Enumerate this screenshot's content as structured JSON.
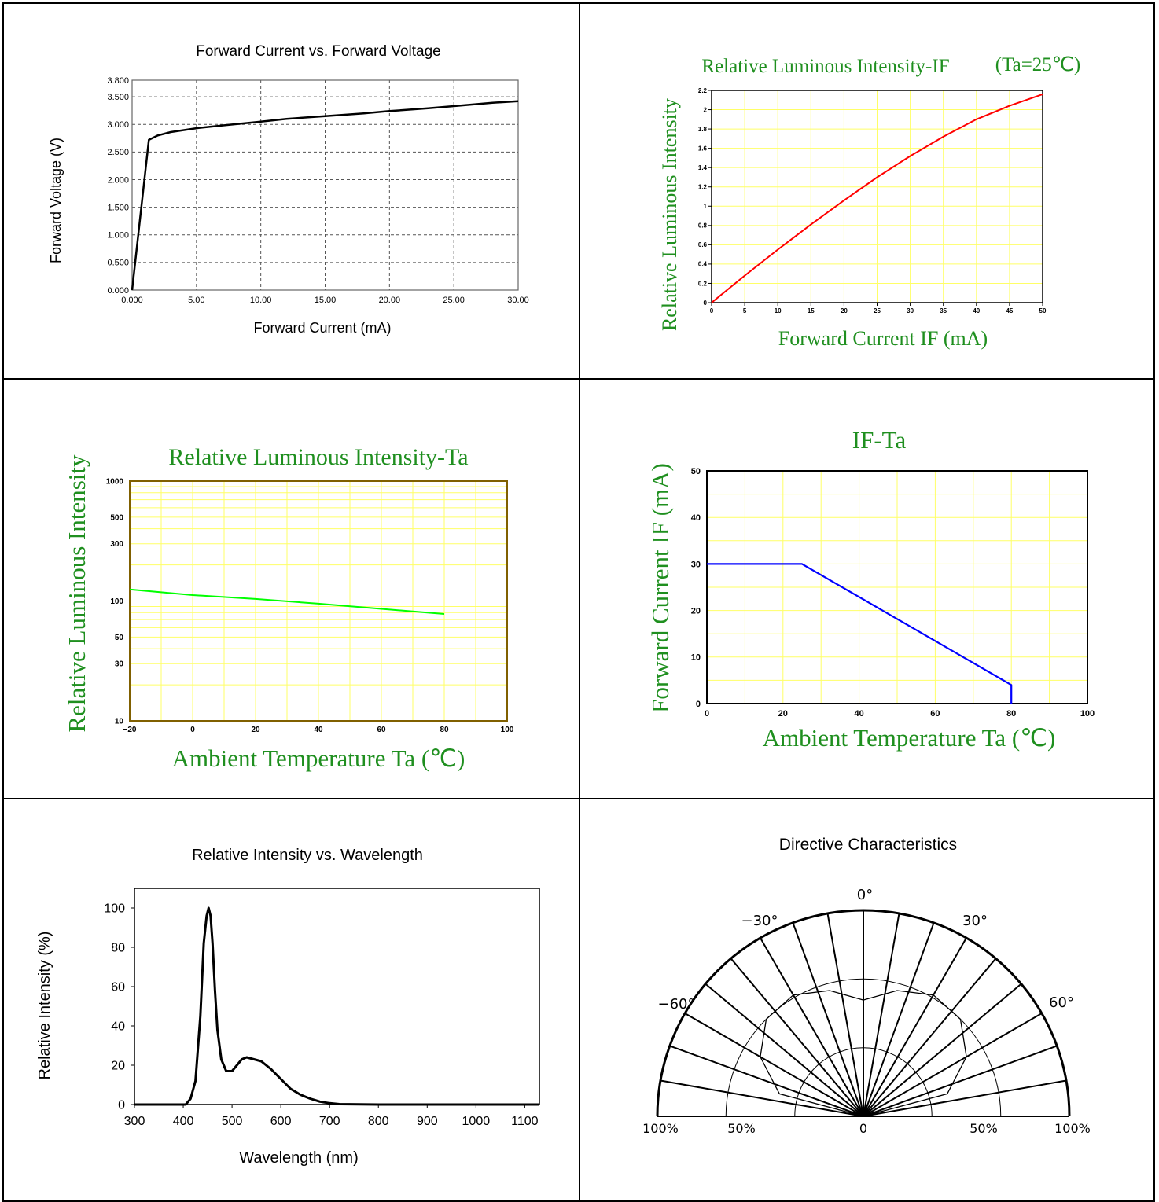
{
  "colors": {
    "grid_yellow": "#ffff66",
    "title_green": "#1f8f1f",
    "curve_red": "#ff0000",
    "curve_green": "#00ff00",
    "curve_blue": "#0000ff",
    "axis_black": "#000000",
    "frame_olive": "#806000"
  },
  "chart_data": [
    {
      "id": "fv",
      "type": "line",
      "title": "Forward Current vs. Forward Voltage",
      "xlabel": "Forward Current (mA)",
      "ylabel": "Forward Voltage (V)",
      "xlim": [
        0,
        30
      ],
      "ylim": [
        0,
        3.8
      ],
      "x_ticks": [
        "0.000",
        "5.00",
        "10.00",
        "15.00",
        "20.00",
        "25.00",
        "30.00"
      ],
      "y_ticks": [
        "0.000",
        "0.500",
        "1.000",
        "1.500",
        "2.000",
        "2.500",
        "3.000",
        "3.500",
        "3.800"
      ],
      "grid": "dashed",
      "series": [
        {
          "x": [
            0,
            1.3,
            2,
            3,
            5,
            7,
            10,
            12,
            15,
            18,
            20,
            23,
            25,
            28,
            30
          ],
          "y": [
            0,
            2.72,
            2.8,
            2.86,
            2.93,
            2.98,
            3.05,
            3.1,
            3.15,
            3.2,
            3.24,
            3.29,
            3.33,
            3.39,
            3.42
          ]
        }
      ]
    },
    {
      "id": "iv",
      "type": "line",
      "title": "Relative Luminous Intensity-IF",
      "title_note": "(Ta=25℃)",
      "xlabel": "Forward Current IF (mA)",
      "ylabel": "Relative Luminous Intensity",
      "xlim": [
        0,
        50
      ],
      "ylim": [
        0,
        2.2
      ],
      "x_ticks": [
        "0",
        "5",
        "10",
        "15",
        "20",
        "25",
        "30",
        "35",
        "40",
        "45",
        "50"
      ],
      "y_ticks": [
        "0",
        "0.2",
        "0.4",
        "0.6",
        "0.8",
        "1",
        "1.2",
        "1.4",
        "1.6",
        "1.8",
        "2",
        "2.2"
      ],
      "grid": "on",
      "series": [
        {
          "x": [
            0,
            5,
            10,
            15,
            20,
            25,
            30,
            35,
            40,
            45,
            50
          ],
          "y": [
            0,
            0.28,
            0.55,
            0.81,
            1.06,
            1.3,
            1.52,
            1.72,
            1.9,
            2.04,
            2.16
          ]
        }
      ]
    },
    {
      "id": "ta",
      "type": "line",
      "title": "Relative Luminous Intensity-Ta",
      "xlabel": "Ambient Temperature Ta (℃)",
      "ylabel": "Relative Luminous Intensity",
      "xlim": [
        -20,
        100
      ],
      "ylim": [
        10,
        1000
      ],
      "y_scale": "log",
      "x_ticks": [
        "−20",
        "0",
        "20",
        "40",
        "60",
        "80",
        "100"
      ],
      "y_ticks": [
        "10",
        "30",
        "50",
        "100",
        "300",
        "500",
        "1000"
      ],
      "grid": "on",
      "series": [
        {
          "x": [
            -20,
            0,
            20,
            40,
            60,
            80
          ],
          "y": [
            125,
            112,
            104,
            95,
            86,
            78
          ]
        }
      ]
    },
    {
      "id": "ifta",
      "type": "line",
      "title": "IF-Ta",
      "xlabel": "Ambient Temperature Ta (℃)",
      "ylabel": "Forward Current IF (mA)",
      "xlim": [
        0,
        100
      ],
      "ylim": [
        0,
        50
      ],
      "x_ticks": [
        "0",
        "20",
        "40",
        "60",
        "80",
        "100"
      ],
      "y_ticks": [
        "0",
        "10",
        "20",
        "30",
        "40",
        "50"
      ],
      "grid": "on",
      "series": [
        {
          "x": [
            0,
            25,
            80,
            80
          ],
          "y": [
            30,
            30,
            4,
            0
          ]
        }
      ]
    },
    {
      "id": "spec",
      "type": "line",
      "title": "Relative Intensity vs. Wavelength",
      "xlabel": "Wavelength (nm)",
      "ylabel": "Relative Intensity (%)",
      "xlim": [
        300,
        1130
      ],
      "ylim": [
        0,
        110
      ],
      "x_ticks": [
        "300",
        "400",
        "500",
        "600",
        "700",
        "800",
        "900",
        "1000",
        "1100"
      ],
      "y_ticks": [
        "0",
        "20",
        "40",
        "60",
        "80",
        "100"
      ],
      "grid": "off",
      "series": [
        {
          "x": [
            300,
            405,
            415,
            425,
            435,
            442,
            448,
            452,
            456,
            460,
            465,
            470,
            478,
            488,
            500,
            510,
            520,
            530,
            545,
            560,
            580,
            600,
            620,
            640,
            660,
            680,
            700,
            720,
            800,
            1130
          ],
          "y": [
            0,
            0,
            3,
            12,
            45,
            82,
            96,
            100,
            96,
            82,
            58,
            38,
            23,
            17,
            17,
            20,
            23,
            24,
            23,
            22,
            18,
            13,
            8,
            5,
            3,
            1.5,
            0.7,
            0.2,
            0,
            0
          ]
        }
      ]
    },
    {
      "id": "polar",
      "type": "polar",
      "title": "Directive Characteristics",
      "angle_labels": [
        "0°",
        "−30°",
        "30°",
        "−60°",
        "60°"
      ],
      "radius_labels": [
        "100%",
        "50%",
        "0",
        "50%",
        "100%"
      ],
      "series": [
        {
          "angle_deg": [
            -90,
            -75,
            -60,
            -45,
            -30,
            -15,
            0,
            15,
            30,
            45,
            60,
            75,
            90
          ],
          "relative": [
            0,
            0.62,
            0.85,
            0.98,
            1.0,
            0.93,
            0.83,
            0.93,
            1.0,
            0.98,
            0.85,
            0.62,
            0
          ]
        }
      ]
    }
  ]
}
